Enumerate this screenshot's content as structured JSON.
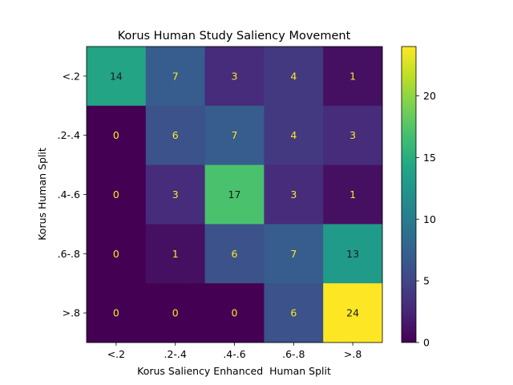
{
  "chart_data": {
    "type": "heatmap",
    "title": "Korus Human Study Saliency Movement",
    "xlabel": "Korus Saliency Enhanced  Human Split",
    "ylabel": "Korus Human Split",
    "x_categories": [
      "<.2",
      ".2-.4",
      ".4-.6",
      ".6-.8",
      ">.8"
    ],
    "y_categories": [
      "<.2",
      ".2-.4",
      ".4-.6",
      ".6-.8",
      ">.8"
    ],
    "values": [
      [
        14,
        7,
        3,
        4,
        1
      ],
      [
        0,
        6,
        7,
        4,
        3
      ],
      [
        0,
        3,
        17,
        3,
        1
      ],
      [
        0,
        1,
        6,
        7,
        13
      ],
      [
        0,
        0,
        0,
        6,
        24
      ]
    ],
    "colormap": "viridis",
    "colorbar": {
      "range": [
        0,
        24
      ],
      "ticks": [
        "0",
        "5",
        "10",
        "15",
        "20"
      ]
    },
    "text_color_light": "#fde725",
    "text_color_dark": "#1a1a1a"
  }
}
